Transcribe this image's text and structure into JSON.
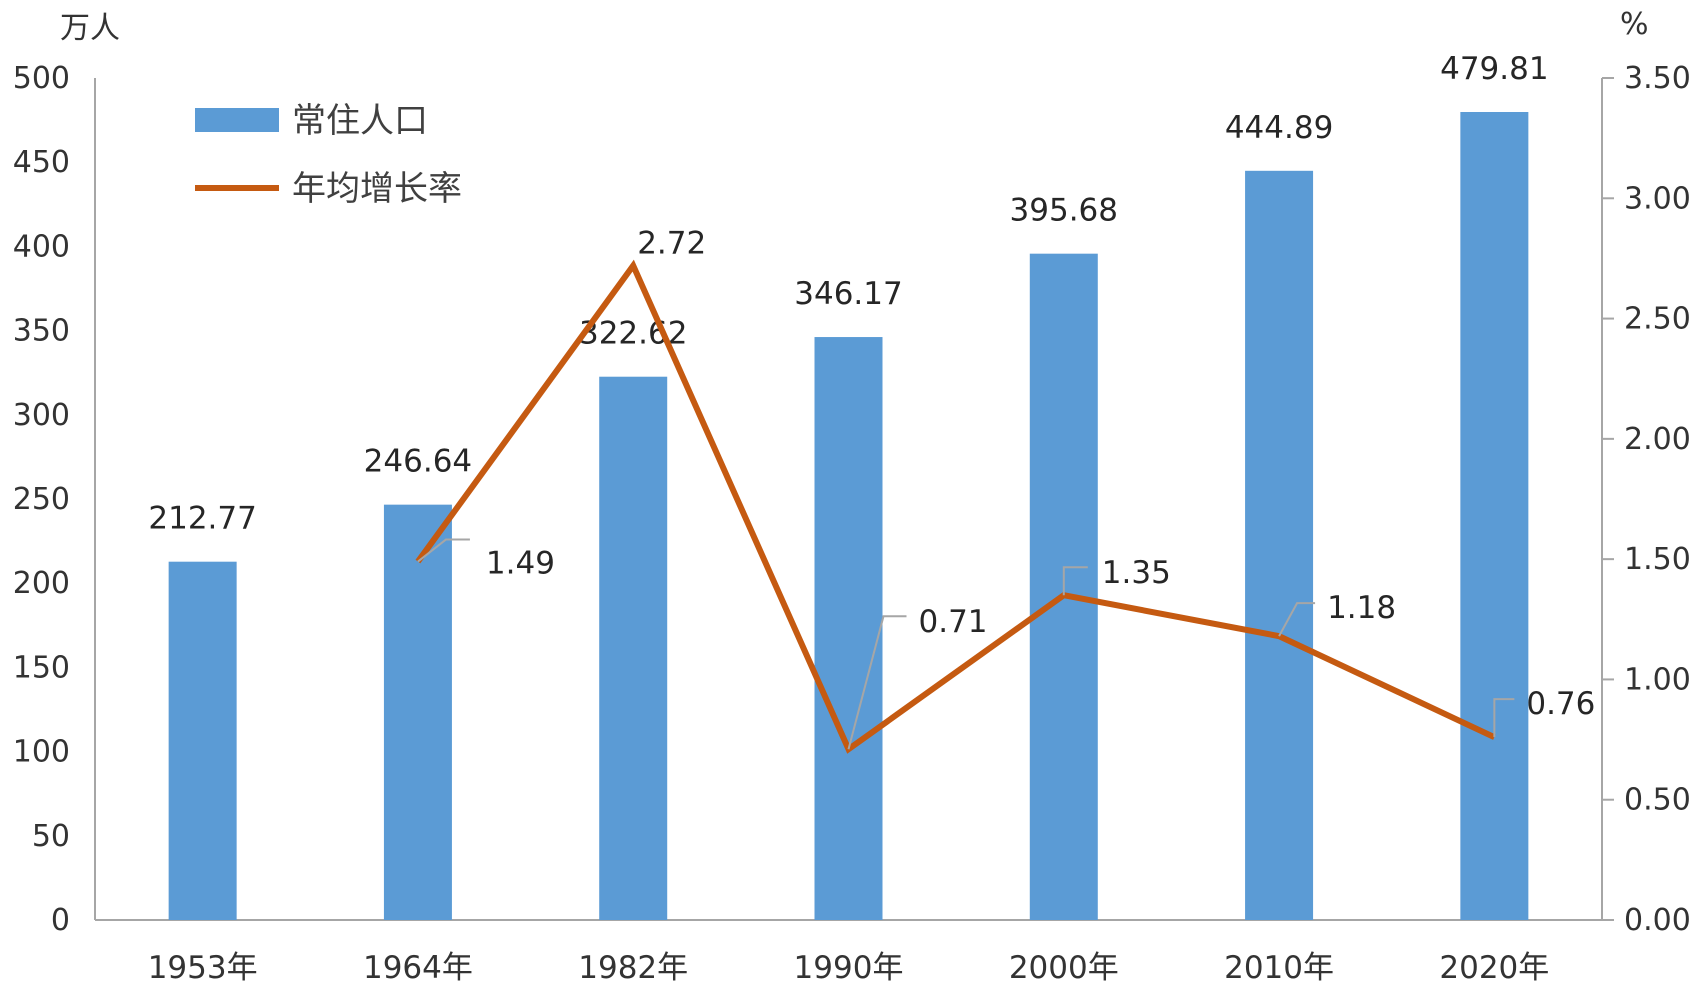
{
  "chart_data": {
    "type": "bar",
    "categories": [
      "1953年",
      "1964年",
      "1982年",
      "1990年",
      "2000年",
      "2010年",
      "2020年"
    ],
    "series": [
      {
        "name": "常住人口",
        "type": "bar",
        "axis": "left",
        "color": "#5b9bd5",
        "values": [
          212.77,
          246.64,
          322.62,
          346.17,
          395.68,
          444.89,
          479.81
        ],
        "labels": [
          "212.77",
          "246.64",
          "322.62",
          "346.17",
          "395.68",
          "444.89",
          "479.81"
        ]
      },
      {
        "name": "年均增长率",
        "type": "line",
        "axis": "right",
        "color": "#c55a11",
        "values": [
          null,
          1.49,
          2.72,
          0.71,
          1.35,
          1.18,
          0.76
        ],
        "labels": [
          null,
          "1.49",
          "2.72",
          "0.71",
          "1.35",
          "1.18",
          "0.76"
        ]
      }
    ],
    "y_left": {
      "unit": "万人",
      "ylim": [
        0,
        500
      ],
      "ticks": [
        "0",
        "50",
        "100",
        "150",
        "200",
        "250",
        "300",
        "350",
        "400",
        "450",
        "500"
      ]
    },
    "y_right": {
      "unit": "%",
      "ylim": [
        0,
        3.5
      ],
      "ticks": [
        "0.00",
        "0.50",
        "1.00",
        "1.50",
        "2.00",
        "2.50",
        "3.00",
        "3.50"
      ]
    },
    "grid": false,
    "legend_position": "top-left"
  }
}
